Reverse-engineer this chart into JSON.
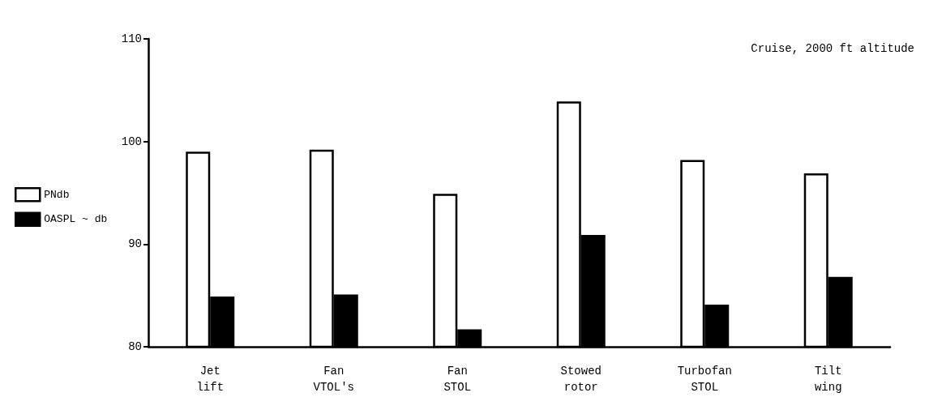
{
  "chart_data": {
    "type": "bar",
    "categories": [
      "Jet\nlift",
      "Fan\nVTOL's",
      "Fan\nSTOL",
      "Stowed\nrotor",
      "Turbofan\nSTOL",
      "Tilt\nwing"
    ],
    "series": [
      {
        "name": "PNdb",
        "color": "#ffffff",
        "values": [
          99,
          99.2,
          94.9,
          103.9,
          98.2,
          96.9
        ]
      },
      {
        "name": "OASPL ~ db",
        "color": "#000000",
        "values": [
          84.9,
          85.1,
          81.7,
          90.9,
          84.1,
          86.8
        ]
      }
    ],
    "ylim": [
      80,
      110
    ],
    "yticks": [
      80,
      90,
      100,
      110
    ],
    "grid": false,
    "legend": "left",
    "annotations": [
      "Cruise, 2000 ft altitude"
    ]
  }
}
